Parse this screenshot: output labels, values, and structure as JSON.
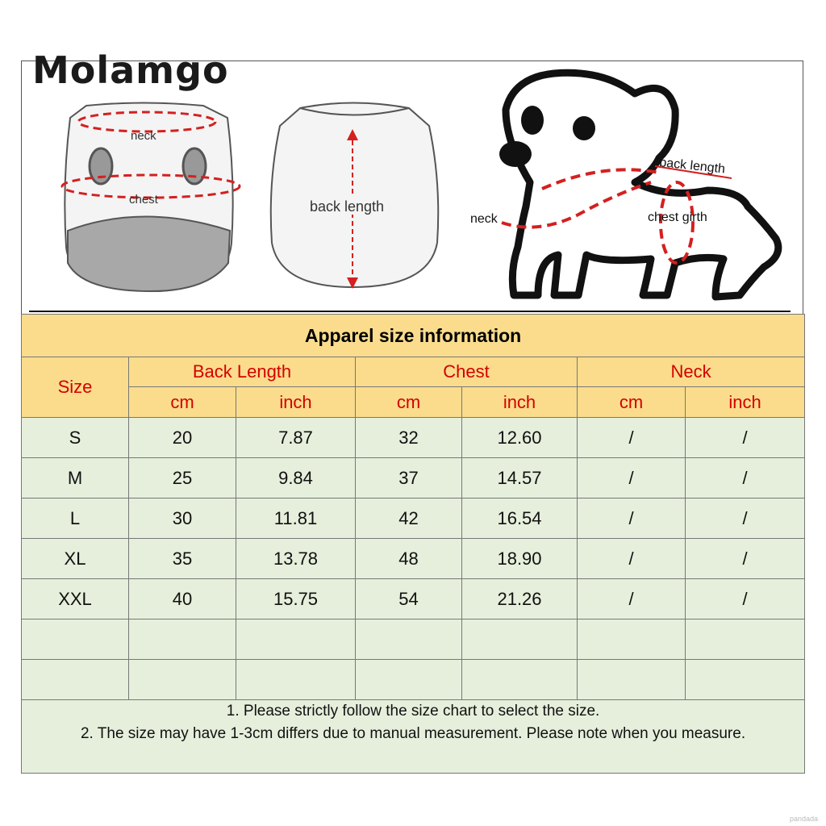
{
  "brand": "Molamgo",
  "illustration": {
    "front_labels": {
      "neck": "neck",
      "chest": "chest"
    },
    "back_label": "back length",
    "dog_labels": {
      "back_length": "back length",
      "neck": "neck",
      "chest_girth": "chest girth"
    },
    "accent_color": "#d42020"
  },
  "table": {
    "title": "Apparel  size  information",
    "size_header": "Size",
    "groups": [
      "Back Length",
      "Chest",
      "Neck"
    ],
    "units": [
      "cm",
      "inch",
      "cm",
      "inch",
      "cm",
      "inch"
    ],
    "rows": [
      [
        "S",
        "20",
        "7.87",
        "32",
        "12.60",
        "/",
        "/"
      ],
      [
        "M",
        "25",
        "9.84",
        "37",
        "14.57",
        "/",
        "/"
      ],
      [
        "L",
        "30",
        "11.81",
        "42",
        "16.54",
        "/",
        "/"
      ],
      [
        "XL",
        "35",
        "13.78",
        "48",
        "18.90",
        "/",
        "/"
      ],
      [
        "XXL",
        "40",
        "15.75",
        "54",
        "21.26",
        "/",
        "/"
      ],
      [
        "",
        "",
        "",
        "",
        "",
        "",
        ""
      ],
      [
        "",
        "",
        "",
        "",
        "",
        "",
        ""
      ]
    ],
    "notes": [
      "1. Please strictly follow the size chart  to select the size.",
      "2. The size may have 1-3cm differs due to manual measurement. Please note when you measure."
    ],
    "header_color": "#fadc8c",
    "body_color": "#e6efdc",
    "header_text_color": "#d40000"
  },
  "watermark": "pandada"
}
